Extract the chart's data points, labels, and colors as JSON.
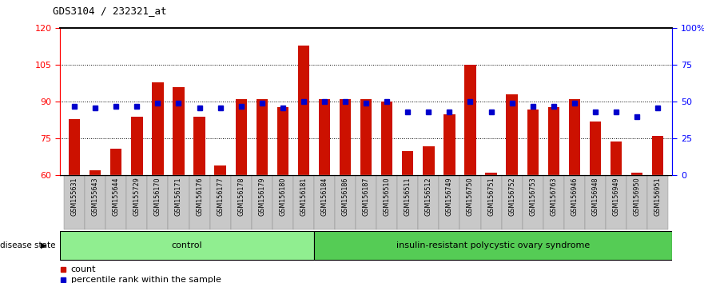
{
  "title": "GDS3104 / 232321_at",
  "samples": [
    "GSM155631",
    "GSM155643",
    "GSM155644",
    "GSM155729",
    "GSM156170",
    "GSM156171",
    "GSM156176",
    "GSM156177",
    "GSM156178",
    "GSM156179",
    "GSM156180",
    "GSM156181",
    "GSM156184",
    "GSM156186",
    "GSM156187",
    "GSM156510",
    "GSM156511",
    "GSM156512",
    "GSM156749",
    "GSM156750",
    "GSM156751",
    "GSM156752",
    "GSM156753",
    "GSM156763",
    "GSM156946",
    "GSM156948",
    "GSM156949",
    "GSM156950",
    "GSM156951"
  ],
  "bar_values": [
    83,
    62,
    71,
    84,
    98,
    96,
    84,
    64,
    91,
    91,
    88,
    113,
    91,
    91,
    91,
    90,
    70,
    72,
    85,
    105,
    61,
    93,
    87,
    88,
    91,
    82,
    74,
    61,
    76
  ],
  "percentile_values": [
    47,
    46,
    47,
    47,
    49,
    49,
    46,
    46,
    47,
    49,
    46,
    50,
    50,
    50,
    49,
    50,
    43,
    43,
    43,
    50,
    43,
    49,
    47,
    47,
    49,
    43,
    43,
    40,
    46
  ],
  "group_labels": [
    "control",
    "insulin-resistant polycystic ovary syndrome"
  ],
  "group_sizes": [
    12,
    17
  ],
  "bar_color": "#CC1100",
  "marker_color": "#0000CC",
  "ylim_left": [
    60,
    120
  ],
  "yticks_left": [
    60,
    75,
    90,
    105,
    120
  ],
  "ylim_right": [
    0,
    100
  ],
  "yticks_right": [
    0,
    25,
    50,
    75,
    100
  ],
  "ytick_labels_right": [
    "0",
    "25",
    "50",
    "75",
    "100%"
  ],
  "background_color": "#ffffff",
  "plot_bg_color": "#ffffff",
  "bar_width": 0.55,
  "disease_state_label": "disease state"
}
